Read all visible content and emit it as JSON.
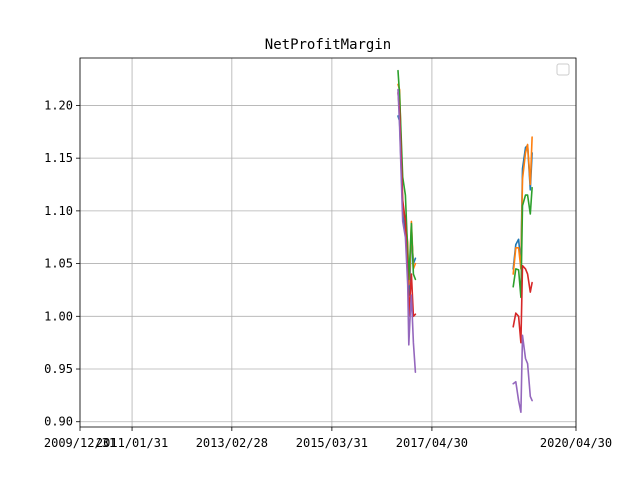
{
  "chart_data": {
    "type": "line",
    "title": "NetProfitMargin",
    "xlabel": "",
    "ylabel": "",
    "x_axis_type": "date",
    "xlim": [
      "2009-12-31",
      "2020-04-30"
    ],
    "ylim": [
      0.895,
      1.245
    ],
    "xticks": [
      {
        "date": "2009-12-31",
        "label": "2009/12/31"
      },
      {
        "date": "2011-01-31",
        "label": "2011/01/31"
      },
      {
        "date": "2013-02-28",
        "label": "2013/02/28"
      },
      {
        "date": "2015-03-31",
        "label": "2015/03/31"
      },
      {
        "date": "2017-04-30",
        "label": "2017/04/30"
      },
      {
        "date": "2020-04-30",
        "label": "2020/04/30"
      }
    ],
    "yticks": [
      0.9,
      0.95,
      1.0,
      1.05,
      1.1,
      1.15,
      1.2
    ],
    "ytick_labels": [
      "0.90",
      "0.95",
      "1.00",
      "1.05",
      "1.10",
      "1.15",
      "1.20"
    ],
    "grid": true,
    "legend": {
      "placement": "upper-right",
      "entries": []
    },
    "series": [
      {
        "color": "#1f77b4",
        "segments": [
          [
            [
              "2016-08-15",
              1.19
            ],
            [
              "2016-08-27",
              1.185
            ],
            [
              "2016-09-20",
              1.1
            ],
            [
              "2016-10-10",
              1.08
            ],
            [
              "2016-10-28",
              1.06
            ],
            [
              "2016-11-05",
              1.02
            ],
            [
              "2016-11-15",
              1.04
            ],
            [
              "2016-11-25",
              1.08
            ],
            [
              "2016-12-10",
              1.05
            ],
            [
              "2016-12-25",
              1.055
            ]
          ],
          [
            [
              "2019-01-08",
              1.045
            ],
            [
              "2019-01-28",
              1.068
            ],
            [
              "2019-02-18",
              1.073
            ],
            [
              "2019-03-08",
              1.05
            ],
            [
              "2019-03-20",
              1.14
            ],
            [
              "2019-04-12",
              1.16
            ],
            [
              "2019-04-28",
              1.162
            ],
            [
              "2019-05-18",
              1.12
            ],
            [
              "2019-06-01",
              1.155
            ]
          ]
        ]
      },
      {
        "color": "#ff7f0e",
        "segments": [
          [
            [
              "2016-08-15",
              1.22
            ],
            [
              "2016-08-27",
              1.215
            ],
            [
              "2016-09-20",
              1.105
            ],
            [
              "2016-10-10",
              1.09
            ],
            [
              "2016-10-28",
              1.07
            ],
            [
              "2016-11-05",
              1.03
            ],
            [
              "2016-11-15",
              1.05
            ],
            [
              "2016-11-25",
              1.09
            ],
            [
              "2016-12-10",
              1.045
            ],
            [
              "2016-12-25",
              1.05
            ]
          ],
          [
            [
              "2019-01-08",
              1.04
            ],
            [
              "2019-01-28",
              1.065
            ],
            [
              "2019-02-18",
              1.065
            ],
            [
              "2019-03-08",
              1.045
            ],
            [
              "2019-03-20",
              1.13
            ],
            [
              "2019-04-12",
              1.155
            ],
            [
              "2019-04-28",
              1.163
            ],
            [
              "2019-05-18",
              1.125
            ],
            [
              "2019-06-01",
              1.17
            ]
          ]
        ]
      },
      {
        "color": "#2ca02c",
        "segments": [
          [
            [
              "2016-08-15",
              1.233
            ],
            [
              "2016-08-27",
              1.21
            ],
            [
              "2016-09-20",
              1.132
            ],
            [
              "2016-10-10",
              1.115
            ],
            [
              "2016-10-28",
              1.06
            ],
            [
              "2016-11-05",
              1.035
            ],
            [
              "2016-11-15",
              1.06
            ],
            [
              "2016-11-25",
              1.088
            ],
            [
              "2016-12-10",
              1.04
            ],
            [
              "2016-12-25",
              1.035
            ]
          ],
          [
            [
              "2019-01-08",
              1.028
            ],
            [
              "2019-01-28",
              1.045
            ],
            [
              "2019-02-18",
              1.044
            ],
            [
              "2019-03-08",
              1.018
            ],
            [
              "2019-03-20",
              1.105
            ],
            [
              "2019-04-12",
              1.115
            ],
            [
              "2019-04-28",
              1.115
            ],
            [
              "2019-05-18",
              1.097
            ],
            [
              "2019-06-01",
              1.122
            ]
          ]
        ]
      },
      {
        "color": "#d62728",
        "segments": [
          [
            [
              "2016-08-15",
              1.212
            ],
            [
              "2016-08-27",
              1.195
            ],
            [
              "2016-09-20",
              1.11
            ],
            [
              "2016-10-10",
              1.09
            ],
            [
              "2016-10-28",
              1.04
            ],
            [
              "2016-11-05",
              1.0
            ],
            [
              "2016-11-15",
              1.02
            ],
            [
              "2016-11-25",
              1.04
            ],
            [
              "2016-12-10",
              1.0
            ],
            [
              "2016-12-25",
              1.002
            ]
          ],
          [
            [
              "2019-01-08",
              0.99
            ],
            [
              "2019-01-28",
              1.003
            ],
            [
              "2019-02-18",
              1.0
            ],
            [
              "2019-03-08",
              0.975
            ],
            [
              "2019-03-20",
              1.048
            ],
            [
              "2019-04-12",
              1.045
            ],
            [
              "2019-04-28",
              1.04
            ],
            [
              "2019-05-18",
              1.023
            ],
            [
              "2019-06-01",
              1.032
            ]
          ]
        ]
      },
      {
        "color": "#9467bd",
        "segments": [
          [
            [
              "2016-08-15",
              1.215
            ],
            [
              "2016-08-27",
              1.18
            ],
            [
              "2016-09-20",
              1.09
            ],
            [
              "2016-10-10",
              1.075
            ],
            [
              "2016-10-28",
              1.03
            ],
            [
              "2016-11-05",
              0.973
            ],
            [
              "2016-11-15",
              1.0
            ],
            [
              "2016-11-25",
              1.02
            ],
            [
              "2016-12-10",
              0.975
            ],
            [
              "2016-12-25",
              0.947
            ]
          ],
          [
            [
              "2019-01-08",
              0.936
            ],
            [
              "2019-01-28",
              0.938
            ],
            [
              "2019-02-18",
              0.92
            ],
            [
              "2019-03-08",
              0.909
            ],
            [
              "2019-03-20",
              0.982
            ],
            [
              "2019-04-12",
              0.96
            ],
            [
              "2019-04-28",
              0.955
            ],
            [
              "2019-05-18",
              0.924
            ],
            [
              "2019-06-01",
              0.92
            ]
          ]
        ]
      }
    ]
  }
}
